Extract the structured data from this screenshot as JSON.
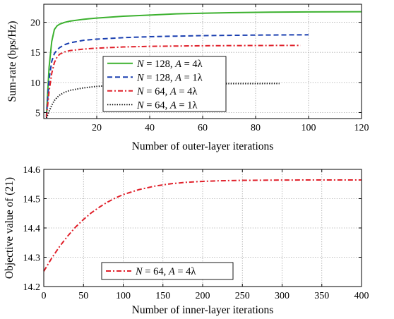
{
  "chart_data": [
    {
      "type": "line",
      "title": "",
      "xlabel": "Number of outer-layer iterations",
      "ylabel": "Sum-rate (bps/Hz)",
      "xlim": [
        0,
        120
      ],
      "ylim": [
        4,
        23
      ],
      "xticks": [
        20,
        40,
        60,
        80,
        100,
        120
      ],
      "yticks": [
        5,
        10,
        15,
        20
      ],
      "grid": true,
      "legend": "center-left",
      "series": [
        {
          "name": "N = 128, A = 4λ",
          "color": "#3cb12f",
          "dash": "",
          "width": 2,
          "x": [
            1,
            2,
            3,
            4,
            5,
            6,
            8,
            10,
            15,
            20,
            30,
            40,
            50,
            60,
            70,
            80,
            90,
            100,
            110,
            120
          ],
          "y": [
            4.5,
            12.5,
            16.8,
            18.8,
            19.4,
            19.7,
            20.0,
            20.2,
            20.5,
            20.7,
            21.0,
            21.2,
            21.4,
            21.5,
            21.6,
            21.65,
            21.7,
            21.72,
            21.74,
            21.75
          ]
        },
        {
          "name": "N = 128, A = 1λ",
          "color": "#1a3fb0",
          "dash": "7 4",
          "width": 2,
          "x": [
            1,
            2,
            3,
            4,
            5,
            6,
            8,
            10,
            15,
            20,
            30,
            40,
            50,
            60,
            70,
            80,
            90,
            100
          ],
          "y": [
            4.3,
            10.5,
            13.5,
            14.8,
            15.4,
            15.8,
            16.3,
            16.6,
            17.0,
            17.2,
            17.45,
            17.6,
            17.7,
            17.78,
            17.83,
            17.87,
            17.9,
            17.92
          ]
        },
        {
          "name": "N = 64, A = 4λ",
          "color": "#e0202a",
          "dash": "7 3 2 3",
          "width": 2,
          "x": [
            1,
            2,
            3,
            4,
            5,
            6,
            8,
            10,
            15,
            20,
            30,
            40,
            50,
            60,
            70,
            80,
            90,
            97
          ],
          "y": [
            4.2,
            8.5,
            11.5,
            13.3,
            14.2,
            14.7,
            15.1,
            15.3,
            15.55,
            15.7,
            15.9,
            16.0,
            16.05,
            16.1,
            16.12,
            16.14,
            16.15,
            16.15
          ]
        },
        {
          "name": "N = 64, A = 1λ",
          "color": "#111111",
          "dash": "1.4 2",
          "width": 2,
          "x": [
            1,
            2,
            3,
            4,
            5,
            6,
            8,
            10,
            15,
            20,
            25,
            30,
            40,
            50,
            60,
            70,
            80,
            89
          ],
          "y": [
            4.1,
            5.2,
            6.2,
            7.0,
            7.5,
            7.9,
            8.4,
            8.7,
            9.1,
            9.35,
            9.5,
            9.6,
            9.7,
            9.75,
            9.78,
            9.8,
            9.81,
            9.82
          ]
        }
      ]
    },
    {
      "type": "line",
      "title": "",
      "xlabel": "Number of inner-layer iterations",
      "ylabel": "Objective value of (21)",
      "xlim": [
        0,
        400
      ],
      "ylim": [
        14.2,
        14.6
      ],
      "xticks": [
        0,
        50,
        100,
        150,
        200,
        250,
        300,
        350,
        400
      ],
      "yticks": [
        14.2,
        14.3,
        14.4,
        14.5,
        14.6
      ],
      "grid": true,
      "legend": "bottom-center",
      "series": [
        {
          "name": "N = 64, A = 4λ",
          "color": "#e0202a",
          "dash": "7 3 2 3",
          "width": 2,
          "x": [
            0,
            10,
            20,
            30,
            40,
            50,
            60,
            70,
            80,
            90,
            100,
            120,
            140,
            160,
            180,
            200,
            220,
            250,
            300,
            350,
            400
          ],
          "y": [
            14.252,
            14.297,
            14.337,
            14.372,
            14.403,
            14.429,
            14.452,
            14.471,
            14.488,
            14.502,
            14.514,
            14.531,
            14.543,
            14.551,
            14.556,
            14.559,
            14.561,
            14.5625,
            14.5635,
            14.564,
            14.564
          ]
        }
      ]
    }
  ]
}
